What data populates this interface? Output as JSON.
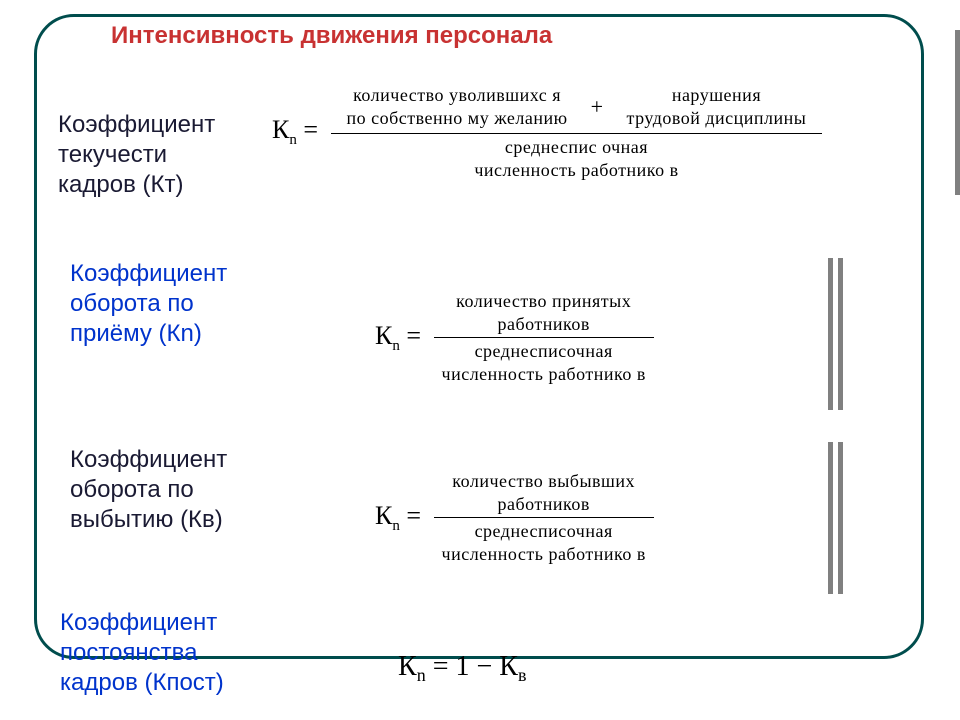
{
  "title": "Интенсивность движения персонала",
  "rows": [
    {
      "label": "Коэффициент\nтекучести\nкадров (Кт)",
      "label_color": "dark",
      "lhs": "К",
      "lhs_sub": "n",
      "num_left": "количество уволившихс я\nпо собственно му желанию",
      "num_right": "нарушения\nтрудовой дисциплины",
      "den": "среднеспис очная\nчисленность работнико в"
    },
    {
      "label": "Коэффициент\nоборота по\n        приёму (Кn)",
      "label_color": "blue",
      "lhs": "К",
      "lhs_sub": "n",
      "num": "количество принятых\nработников",
      "den": "среднесписочная\nчисленность работнико в"
    },
    {
      "label": "Коэффициент\nоборота по\nвыбытию (Кв)",
      "label_color": "dark",
      "lhs": "К",
      "lhs_sub": "n",
      "num": "количество выбывших\nработников",
      "den": "среднесписочная\nчисленность работнико в"
    },
    {
      "label": "Коэффициент\nпостоянства\nкадров (Кпост)",
      "label_color": "blue",
      "eq_plain_left": "К",
      "eq_sub_left": "n",
      "eq_plain_mid": " = 1 − К",
      "eq_sub_right": "в"
    }
  ],
  "colors": {
    "title": "#c83232",
    "dark_text": "#1a1a33",
    "blue_text": "#0033cc",
    "frame": "#004d4d",
    "vbar": "#808080",
    "background": "#ffffff"
  },
  "typography": {
    "title_fontsize": 24,
    "label_fontsize": 24,
    "lhs_fontsize": 26,
    "frac_fontsize": 18,
    "plain_eq_fontsize": 28,
    "label_font": "Arial",
    "formula_font": "Times New Roman"
  }
}
